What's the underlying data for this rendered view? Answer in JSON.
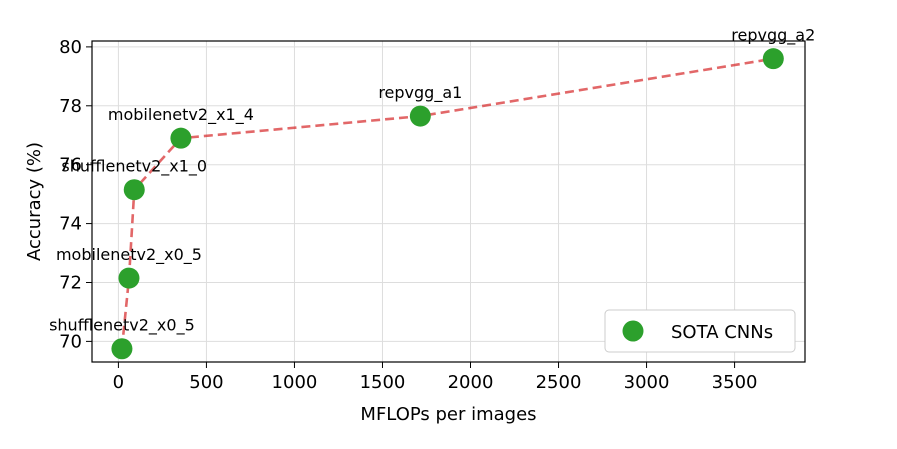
{
  "chart_data": {
    "type": "line",
    "xlabel": "MFLOPs per images",
    "ylabel": "Accuracy (%)",
    "xlim": [
      -150,
      3900
    ],
    "ylim": [
      69.3,
      80.2
    ],
    "xticks": [
      0,
      500,
      1000,
      1500,
      2000,
      2500,
      3000,
      3500
    ],
    "yticks": [
      70,
      72,
      74,
      76,
      78,
      80
    ],
    "grid": true,
    "legend_position": "bottom-right",
    "colors": {
      "marker": "#2ca02c",
      "line": "#d62728"
    },
    "series": [
      {
        "name": "SOTA CNNs",
        "points": [
          {
            "label": "shufflenetv2_x0_5",
            "x": 20,
            "y": 69.75
          },
          {
            "label": "mobilenetv2_x0_5",
            "x": 60,
            "y": 72.15
          },
          {
            "label": "shufflenetv2_x1_0",
            "x": 90,
            "y": 75.15
          },
          {
            "label": "mobilenetv2_x1_4",
            "x": 355,
            "y": 76.9
          },
          {
            "label": "repvgg_a1",
            "x": 1715,
            "y": 77.65
          },
          {
            "label": "repvgg_a2",
            "x": 3720,
            "y": 79.6
          }
        ]
      }
    ]
  }
}
